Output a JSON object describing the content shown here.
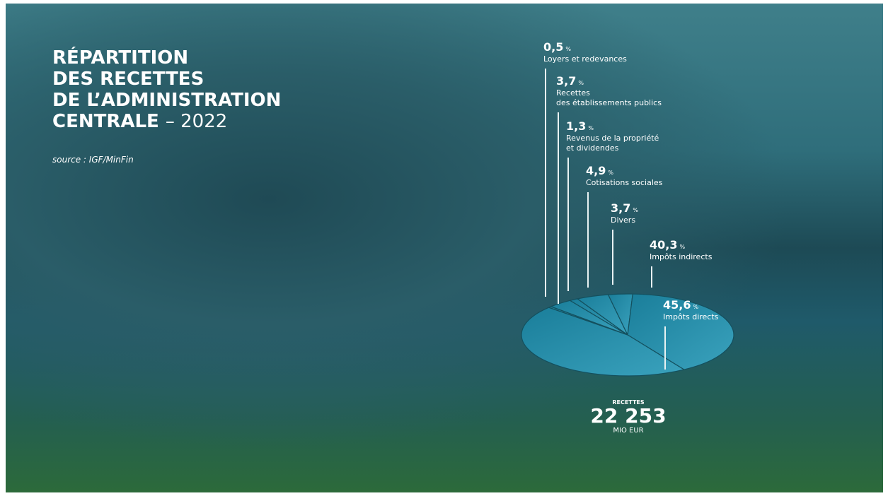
{
  "chart_data": {
    "type": "pie",
    "title_lines": [
      "RÉPARTITION",
      "DES RECETTES",
      "DE L’ADMINISTRATION",
      "CENTRALE"
    ],
    "year": "– 2022",
    "source": "source : IGF/MinFin",
    "categories": [
      "Loyers et redevances",
      "Recettes\ndes établissements publics",
      "Revenus de la propriété\net dividendes",
      "Cotisations sociales",
      "Divers",
      "Impôts indirects",
      "Impôts directs"
    ],
    "values": [
      0.5,
      3.7,
      1.3,
      4.9,
      3.7,
      40.3,
      45.6
    ],
    "value_labels": [
      "0,5",
      "3,7",
      "1,3",
      "4,9",
      "3,7",
      "40,3",
      "45,6"
    ],
    "value_unit": "%",
    "total": {
      "label": "RECETTES",
      "value": 22253,
      "value_label": "22 253",
      "unit": "MIO EUR"
    }
  }
}
